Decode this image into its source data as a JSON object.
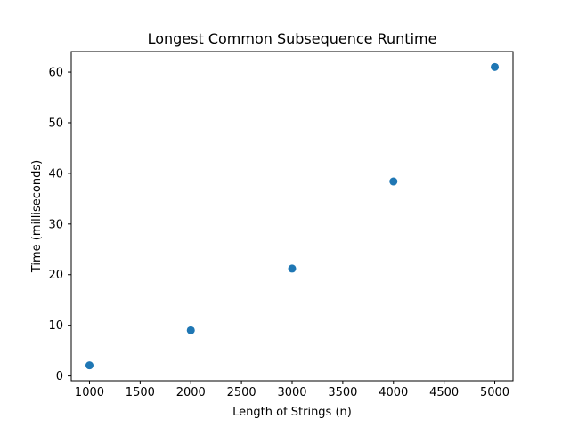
{
  "chart_data": {
    "type": "scatter",
    "title": "Longest Common Subsequence Runtime",
    "xlabel": "Length of Strings (n)",
    "ylabel": "Time (milliseconds)",
    "x": [
      1000,
      2000,
      3000,
      4000,
      5000
    ],
    "y": [
      2.1,
      9.0,
      21.2,
      38.4,
      61.0
    ],
    "xlim": [
      820,
      5180
    ],
    "ylim": [
      -0.95,
      64.05
    ],
    "xticks": [
      1000,
      1500,
      2000,
      2500,
      3000,
      3500,
      4000,
      4500,
      5000
    ],
    "yticks": [
      0,
      10,
      20,
      30,
      40,
      50,
      60
    ],
    "marker_color": "#1f77b4",
    "grid": false,
    "legend": false
  }
}
